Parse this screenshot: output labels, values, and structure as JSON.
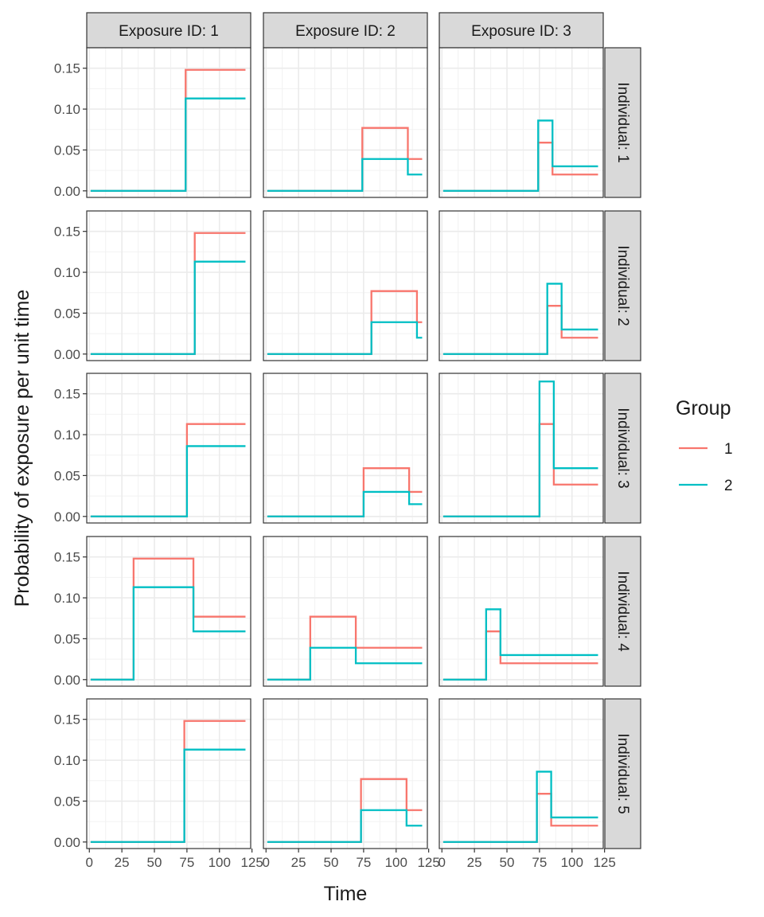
{
  "chart_data": {
    "type": "line",
    "facet_layout": "grid",
    "xlabel": "Time",
    "ylabel": "Probability of exposure per unit time",
    "xlim": [
      -2,
      124
    ],
    "ylim": [
      -0.008,
      0.175
    ],
    "x_ticks": [
      0,
      25,
      50,
      75,
      100,
      125
    ],
    "x_tick_labels": [
      "0",
      "25",
      "50",
      "75",
      "100",
      "125"
    ],
    "y_ticks": [
      0,
      0.05,
      0.1,
      0.15
    ],
    "y_tick_labels": [
      "0.00",
      "0.05",
      "0.10",
      "0.15"
    ],
    "grid": true,
    "col_strips": [
      "Exposure ID: 1",
      "Exposure ID: 2",
      "Exposure ID: 3"
    ],
    "row_strips": [
      "Individual: 1",
      "Individual: 2",
      "Individual: 3",
      "Individual: 4",
      "Individual: 5"
    ],
    "legend": {
      "title": "Group",
      "position": "right",
      "entries": [
        {
          "label": "1",
          "color": "#F8766D"
        },
        {
          "label": "2",
          "color": "#00BFC4"
        }
      ]
    },
    "panels": [
      {
        "row": 0,
        "col": 0,
        "series": [
          {
            "group": "1",
            "x": [
              1,
              74,
              74,
              120
            ],
            "y": [
              0,
              0,
              0.148,
              0.148
            ]
          },
          {
            "group": "2",
            "x": [
              1,
              74,
              74,
              120
            ],
            "y": [
              0,
              0,
              0.113,
              0.113
            ]
          }
        ]
      },
      {
        "row": 0,
        "col": 1,
        "series": [
          {
            "group": "1",
            "x": [
              1,
              74,
              74,
              109,
              109,
              120
            ],
            "y": [
              0,
              0,
              0.077,
              0.077,
              0.039,
              0.039
            ]
          },
          {
            "group": "2",
            "x": [
              1,
              74,
              74,
              109,
              109,
              120
            ],
            "y": [
              0,
              0,
              0.039,
              0.039,
              0.02,
              0.02
            ]
          }
        ]
      },
      {
        "row": 0,
        "col": 2,
        "series": [
          {
            "group": "1",
            "x": [
              1,
              74,
              74,
              85,
              85,
              120
            ],
            "y": [
              0,
              0,
              0.059,
              0.059,
              0.02,
              0.02
            ]
          },
          {
            "group": "2",
            "x": [
              1,
              74,
              74,
              85,
              85,
              120
            ],
            "y": [
              0,
              0,
              0.086,
              0.086,
              0.03,
              0.03
            ]
          }
        ]
      },
      {
        "row": 1,
        "col": 0,
        "series": [
          {
            "group": "1",
            "x": [
              1,
              81,
              81,
              120
            ],
            "y": [
              0,
              0,
              0.148,
              0.148
            ]
          },
          {
            "group": "2",
            "x": [
              1,
              81,
              81,
              120
            ],
            "y": [
              0,
              0,
              0.113,
              0.113
            ]
          }
        ]
      },
      {
        "row": 1,
        "col": 1,
        "series": [
          {
            "group": "1",
            "x": [
              1,
              81,
              81,
              116,
              116,
              120
            ],
            "y": [
              0,
              0,
              0.077,
              0.077,
              0.039,
              0.039
            ]
          },
          {
            "group": "2",
            "x": [
              1,
              81,
              81,
              116,
              116,
              120
            ],
            "y": [
              0,
              0,
              0.039,
              0.039,
              0.02,
              0.02
            ]
          }
        ]
      },
      {
        "row": 1,
        "col": 2,
        "series": [
          {
            "group": "1",
            "x": [
              1,
              81,
              81,
              92,
              92,
              120
            ],
            "y": [
              0,
              0,
              0.059,
              0.059,
              0.02,
              0.02
            ]
          },
          {
            "group": "2",
            "x": [
              1,
              81,
              81,
              92,
              92,
              120
            ],
            "y": [
              0,
              0,
              0.086,
              0.086,
              0.03,
              0.03
            ]
          }
        ]
      },
      {
        "row": 2,
        "col": 0,
        "series": [
          {
            "group": "1",
            "x": [
              1,
              75,
              75,
              120
            ],
            "y": [
              0,
              0,
              0.113,
              0.113
            ]
          },
          {
            "group": "2",
            "x": [
              1,
              75,
              75,
              120
            ],
            "y": [
              0,
              0,
              0.086,
              0.086
            ]
          }
        ]
      },
      {
        "row": 2,
        "col": 1,
        "series": [
          {
            "group": "1",
            "x": [
              1,
              75,
              75,
              110,
              110,
              120
            ],
            "y": [
              0,
              0,
              0.059,
              0.059,
              0.03,
              0.03
            ]
          },
          {
            "group": "2",
            "x": [
              1,
              75,
              75,
              110,
              110,
              120
            ],
            "y": [
              0,
              0,
              0.03,
              0.03,
              0.015,
              0.015
            ]
          }
        ]
      },
      {
        "row": 2,
        "col": 2,
        "series": [
          {
            "group": "1",
            "x": [
              1,
              75,
              75,
              86,
              86,
              120
            ],
            "y": [
              0,
              0,
              0.113,
              0.113,
              0.039,
              0.039
            ]
          },
          {
            "group": "2",
            "x": [
              1,
              75,
              75,
              86,
              86,
              120
            ],
            "y": [
              0,
              0,
              0.165,
              0.165,
              0.059,
              0.059
            ]
          }
        ]
      },
      {
        "row": 3,
        "col": 0,
        "series": [
          {
            "group": "1",
            "x": [
              1,
              34,
              34,
              80,
              80,
              120
            ],
            "y": [
              0,
              0,
              0.148,
              0.148,
              0.077,
              0.077
            ]
          },
          {
            "group": "2",
            "x": [
              1,
              34,
              34,
              80,
              80,
              120
            ],
            "y": [
              0,
              0,
              0.113,
              0.113,
              0.059,
              0.059
            ]
          }
        ]
      },
      {
        "row": 3,
        "col": 1,
        "series": [
          {
            "group": "1",
            "x": [
              1,
              34,
              34,
              69,
              69,
              120
            ],
            "y": [
              0,
              0,
              0.077,
              0.077,
              0.039,
              0.039
            ]
          },
          {
            "group": "2",
            "x": [
              1,
              34,
              34,
              69,
              69,
              120
            ],
            "y": [
              0,
              0,
              0.039,
              0.039,
              0.02,
              0.02
            ]
          }
        ]
      },
      {
        "row": 3,
        "col": 2,
        "series": [
          {
            "group": "1",
            "x": [
              1,
              34,
              34,
              45,
              45,
              120
            ],
            "y": [
              0,
              0,
              0.059,
              0.059,
              0.02,
              0.02
            ]
          },
          {
            "group": "2",
            "x": [
              1,
              34,
              34,
              45,
              45,
              120
            ],
            "y": [
              0,
              0,
              0.086,
              0.086,
              0.03,
              0.03
            ]
          }
        ]
      },
      {
        "row": 4,
        "col": 0,
        "series": [
          {
            "group": "1",
            "x": [
              1,
              73,
              73,
              120
            ],
            "y": [
              0,
              0,
              0.148,
              0.148
            ]
          },
          {
            "group": "2",
            "x": [
              1,
              73,
              73,
              120
            ],
            "y": [
              0,
              0,
              0.113,
              0.113
            ]
          }
        ]
      },
      {
        "row": 4,
        "col": 1,
        "series": [
          {
            "group": "1",
            "x": [
              1,
              73,
              73,
              108,
              108,
              120
            ],
            "y": [
              0,
              0,
              0.077,
              0.077,
              0.039,
              0.039
            ]
          },
          {
            "group": "2",
            "x": [
              1,
              73,
              73,
              108,
              108,
              120
            ],
            "y": [
              0,
              0,
              0.039,
              0.039,
              0.02,
              0.02
            ]
          }
        ]
      },
      {
        "row": 4,
        "col": 2,
        "series": [
          {
            "group": "1",
            "x": [
              1,
              73,
              73,
              84,
              84,
              120
            ],
            "y": [
              0,
              0,
              0.059,
              0.059,
              0.02,
              0.02
            ]
          },
          {
            "group": "2",
            "x": [
              1,
              73,
              73,
              84,
              84,
              120
            ],
            "y": [
              0,
              0,
              0.086,
              0.086,
              0.03,
              0.03
            ]
          }
        ]
      }
    ]
  }
}
